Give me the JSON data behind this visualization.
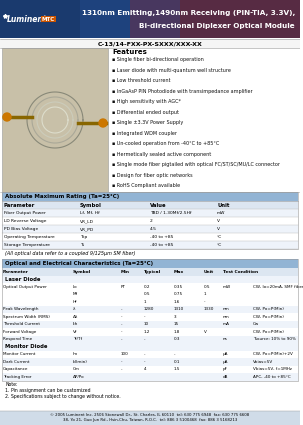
{
  "title_line1": "1310nm Emitting,1490nm Receiving (PIN-TIA, 3.3V),",
  "title_line2": "Bi-directional Diplexer Optical Module",
  "part_number": "C-13/14-FXX-PX-SXXX/XXX-XX",
  "features_title": "Features",
  "features": [
    "Single fiber bi-directional operation",
    "Laser diode with multi-quantum well structure",
    "Low threshold current",
    "InGaAsP PIN Photodiode with transimpedance amplifier",
    "High sensitivity with AGC*",
    "Differential ended output",
    "Single ±3.3V Power Supply",
    "Integrated WDM coupler",
    "Un-cooled operation from -40°C to +85°C",
    "Hermetically sealed active component",
    "Single mode fiber pigtailed with optical FC/ST/SC/MU/LC connector",
    "Design for fiber optic networks",
    "RoHS Compliant available"
  ],
  "abs_max_title": "Absolute Maximum Rating (Ta=25°C)",
  "abs_max_headers": [
    "Parameter",
    "Symbol",
    "Value",
    "Unit"
  ],
  "abs_max_rows": [
    [
      "Fiber Output Power",
      "Lf, Mf, Hf",
      "TBD / 1.30Mf/2.5Hf",
      "mW"
    ],
    [
      "LD Reverse Voltage",
      "VR_LD",
      "2",
      "V"
    ],
    [
      "PD Bias Voltage",
      "VR_PD",
      "4.5",
      "V"
    ],
    [
      "Operating Temperature",
      "Top",
      "-40 to +85",
      "°C"
    ],
    [
      "Storage Temperature",
      "Ts",
      "-40 to +85",
      "°C"
    ]
  ],
  "note_fiber": "(All optical data refer to a coupled 9/125μm SM fiber)",
  "opt_elec_title": "Optical and Electrical Characteristics (Ta=25°C)",
  "opt_elec_headers": [
    "Parameter",
    "Symbol",
    "Min",
    "Typical",
    "Max",
    "Unit",
    "Test Condition"
  ],
  "laser_diode_rows": [
    [
      "Optical Output Power",
      "Lo\nMf\nHf",
      "PT",
      "0.2\n0.5\n1",
      "0.35\n0.75\n1.6",
      "0.5\n1\n-",
      "mW",
      "CW, lo=20mA, SMF fiber"
    ],
    [
      "Peak Wavelength",
      "λ",
      "-",
      "1280",
      "1310",
      "1330",
      "nm",
      "CW, Po=P(Min)"
    ],
    [
      "Spectrum Width (RMS)",
      "Δλ",
      "-",
      "-",
      "3",
      "",
      "nm",
      "CW, Po=P(Min)"
    ],
    [
      "Threshold Current",
      "Ith",
      "-",
      "10",
      "15",
      "",
      "mA",
      "Cw"
    ],
    [
      "Forward Voltage",
      "Vf",
      "-",
      "1.2",
      "1.8",
      "V",
      "",
      "CW, Po=P(Min)"
    ],
    [
      "Respond Time",
      "Tr/Tf",
      "-",
      "-",
      "0.3",
      "",
      "ns",
      "Tsource: 10% to 90%"
    ]
  ],
  "monitor_diode_rows": [
    [
      "Monitor Current",
      "Im",
      "100",
      "-",
      "-",
      "",
      "μA",
      "CW, Po=P(Min)(Min)+2V"
    ],
    [
      "Dark Current",
      "Id(min)",
      "-",
      "-",
      "0.1",
      "",
      "μA",
      "Vbias=5V"
    ],
    [
      "Capacitance",
      "Cm",
      "-",
      "4",
      "1.5",
      "",
      "pF",
      "Vbias=5V, f=1MHz"
    ],
    [
      "Tracking Error",
      "ΔP/Po",
      "",
      "",
      "",
      "",
      "dB",
      "APC, -40 to +85°C"
    ]
  ],
  "note_text": "Note:\n1. Pin assignment can be customized\n2. Specifications subject to change without notice.",
  "footer_text1": "© 2005 Luminent Inc. 2506 Stonewall Dr., St. Charles, IL 60110  tel: 630 775 6948  fax: 630 775 6608",
  "footer_text2": "38, Yo 21, Guo Jun Rd., Hsin-Chu, Taiwan, R.O.C.  tel: 886 3 5100468  fax: 886 3 5168213",
  "header_dark": "#1a3a6e",
  "header_mid": "#2855a0",
  "header_red": "#8b2020",
  "white": "#ffffff",
  "black": "#000000",
  "gray": "#aaaaaa",
  "light_gray": "#e8e8e8",
  "table_header_bg": "#c5d9f1",
  "table_sec_bg": "#dce6f1",
  "table_alt_bg": "#eef3fa",
  "section_title_bg": "#92b4d4",
  "footer_bg": "#d0dce8"
}
